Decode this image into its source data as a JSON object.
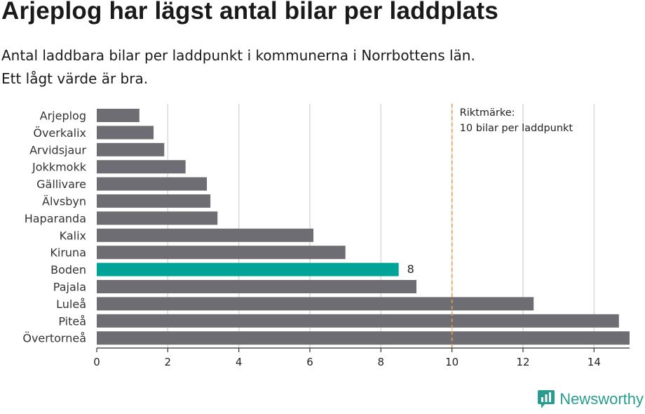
{
  "header": {
    "title": "Arjeplog har lägst antal bilar per laddplats",
    "subtitle_line1": "Antal laddbara bilar per laddpunkt i kommunerna i Norrbottens län.",
    "subtitle_line2": "Ett lågt värde är bra."
  },
  "footer": {
    "brand": "Newsworthy"
  },
  "colors": {
    "bar": "#6e6d73",
    "highlight": "#00a398",
    "reference": "#e0a04a",
    "grid": "#d9d9d9",
    "brand": "#2a9c8f"
  },
  "chart_data": {
    "type": "bar",
    "orientation": "horizontal",
    "categories": [
      "Arjeplog",
      "Överkalix",
      "Arvidsjaur",
      "Jokkmokk",
      "Gällivare",
      "Älvsbyn",
      "Haparanda",
      "Kalix",
      "Kiruna",
      "Boden",
      "Pajala",
      "Luleå",
      "Piteå",
      "Övertorneå"
    ],
    "values": [
      1.2,
      1.6,
      1.9,
      2.5,
      3.1,
      3.2,
      3.4,
      6.1,
      7.0,
      8.5,
      9.0,
      12.3,
      14.7,
      15.0
    ],
    "highlight": "Boden",
    "highlight_label": "8",
    "xlim": [
      0,
      15
    ],
    "xticks": [
      "0",
      "2",
      "4",
      "6",
      "8",
      "10",
      "12",
      "14"
    ],
    "grid": true,
    "reference_line": {
      "value": 10,
      "label_line1": "Riktmärke:",
      "label_line2": "10 bilar per laddpunkt"
    }
  }
}
